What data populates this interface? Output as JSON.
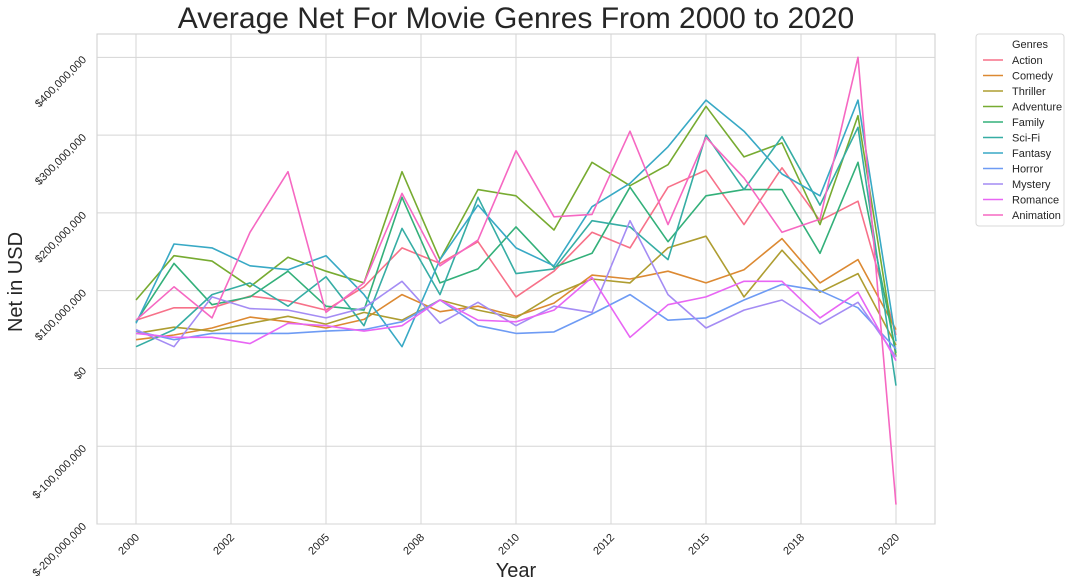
{
  "chart_data": {
    "type": "line",
    "title": "Average Net For Movie Genres From 2000 to 2020",
    "xlabel": "Year",
    "ylabel": "Net in USD",
    "legend_title": "Genres",
    "legend_position": "outside-top-right",
    "grid": true,
    "xlim": [
      2000,
      2020
    ],
    "ylim": [
      -200000000,
      430000000
    ],
    "x_tick_values": [
      2000,
      2002.5,
      2005,
      2007.5,
      2010,
      2012.5,
      2015,
      2017.5,
      2020
    ],
    "x_tick_labels": [
      "2000",
      "2002",
      "2005",
      "2008",
      "2010",
      "2012",
      "2015",
      "2018",
      "2020"
    ],
    "y_tick_values": [
      -200000000,
      -100000000,
      0,
      100000000,
      200000000,
      300000000,
      400000000
    ],
    "y_tick_labels": [
      "$-200,000,000",
      "$-100,000,000",
      "$0",
      "$100,000,000",
      "$200,000,000",
      "$300,000,000",
      "$400,000,000"
    ],
    "x": [
      2000,
      2001,
      2002,
      2003,
      2004,
      2005,
      2006,
      2007,
      2008,
      2009,
      2010,
      2011,
      2012,
      2013,
      2014,
      2015,
      2016,
      2017,
      2018,
      2019,
      2020
    ],
    "series": [
      {
        "name": "Action",
        "color": "#f77189",
        "values": [
          62,
          78,
          78,
          93,
          87,
          75,
          105,
          155,
          135,
          163,
          92,
          125,
          175,
          155,
          233,
          255,
          185,
          258,
          190,
          215,
          43
        ]
      },
      {
        "name": "Comedy",
        "color": "#dc8932",
        "values": [
          37,
          43,
          52,
          66,
          60,
          52,
          63,
          95,
          73,
          80,
          67,
          84,
          120,
          115,
          125,
          110,
          127,
          167,
          110,
          140,
          50
        ]
      },
      {
        "name": "Thriller",
        "color": "#ae9d31",
        "values": [
          45,
          53,
          48,
          58,
          67,
          57,
          72,
          62,
          88,
          75,
          65,
          95,
          115,
          110,
          155,
          170,
          92,
          152,
          98,
          122,
          30
        ]
      },
      {
        "name": "Adventure",
        "color": "#77ab31",
        "values": [
          88,
          145,
          138,
          105,
          143,
          125,
          110,
          253,
          140,
          230,
          222,
          178,
          265,
          235,
          262,
          337,
          272,
          290,
          185,
          325,
          15
        ]
      },
      {
        "name": "Family",
        "color": "#33b07a",
        "values": [
          60,
          135,
          82,
          92,
          125,
          80,
          75,
          220,
          110,
          128,
          182,
          130,
          148,
          233,
          163,
          222,
          230,
          230,
          148,
          265,
          20
        ]
      },
      {
        "name": "Sci-Fi",
        "color": "#36ada4",
        "values": [
          28,
          50,
          95,
          110,
          80,
          118,
          55,
          180,
          95,
          220,
          122,
          128,
          190,
          182,
          140,
          300,
          230,
          298,
          210,
          310,
          -22
        ]
      },
      {
        "name": "Fantasy",
        "color": "#38a9c5",
        "values": [
          58,
          160,
          155,
          132,
          127,
          145,
          95,
          28,
          140,
          210,
          155,
          132,
          208,
          238,
          285,
          345,
          305,
          250,
          222,
          345,
          35
        ]
      },
      {
        "name": "Horror",
        "color": "#6e9bf4",
        "values": [
          48,
          37,
          45,
          45,
          45,
          48,
          50,
          60,
          88,
          55,
          45,
          47,
          70,
          95,
          62,
          65,
          88,
          108,
          100,
          78,
          25
        ]
      },
      {
        "name": "Mystery",
        "color": "#a48cf4",
        "values": [
          50,
          28,
          92,
          77,
          75,
          65,
          78,
          112,
          58,
          85,
          55,
          80,
          72,
          190,
          95,
          52,
          75,
          88,
          57,
          85,
          15
        ]
      },
      {
        "name": "Romance",
        "color": "#e866f4",
        "values": [
          45,
          40,
          40,
          32,
          58,
          55,
          48,
          55,
          88,
          62,
          60,
          75,
          117,
          40,
          82,
          92,
          112,
          112,
          65,
          98,
          10
        ]
      },
      {
        "name": "Animation",
        "color": "#f668c2",
        "values": [
          62,
          105,
          65,
          175,
          253,
          72,
          110,
          225,
          132,
          165,
          280,
          195,
          198,
          305,
          185,
          297,
          245,
          175,
          192,
          400,
          -175
        ]
      }
    ]
  }
}
